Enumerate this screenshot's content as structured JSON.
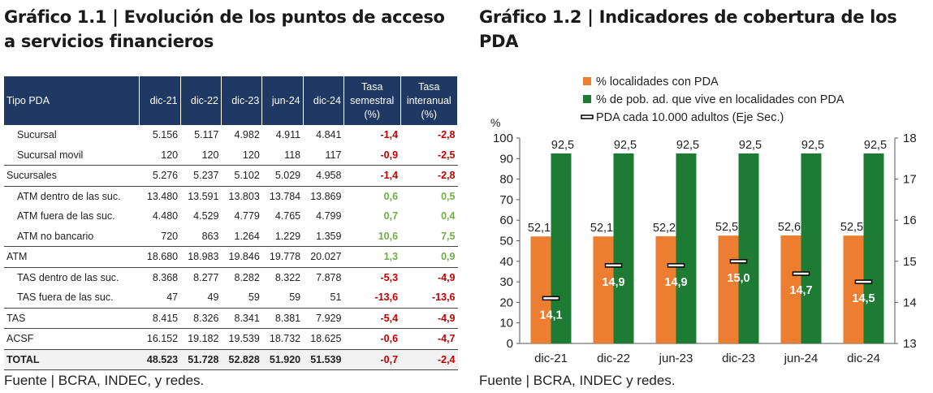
{
  "left": {
    "title": "Gráfico 1.1 | Evolución de los puntos de acceso a servicios financieros",
    "source": "Fuente | BCRA, INDEC, y redes.",
    "table": {
      "headers": [
        "Tipo PDA",
        "dic-21",
        "dic-22",
        "dic-23",
        "jun-24",
        "dic-24"
      ],
      "tasa_semestral": [
        "Tasa",
        "semestral",
        "(%)"
      ],
      "tasa_interanual": [
        "Tasa",
        "interanual",
        "(%)"
      ],
      "rows": [
        {
          "label": "Sucursal",
          "indent": true,
          "values": [
            "5.156",
            "5.117",
            "4.982",
            "4.911",
            "4.841"
          ],
          "semestral": "-1,4",
          "interanual": "-2,8"
        },
        {
          "label": "Sucursal movil",
          "indent": true,
          "values": [
            "120",
            "120",
            "120",
            "118",
            "117"
          ],
          "semestral": "-0,9",
          "interanual": "-2,5"
        },
        {
          "label": "Sucursales",
          "indent": false,
          "values": [
            "5.276",
            "5.237",
            "5.102",
            "5.029",
            "4.958"
          ],
          "semestral": "-1,4",
          "interanual": "-2,8"
        },
        {
          "label": "ATM dentro de las suc.",
          "indent": true,
          "values": [
            "13.480",
            "13.591",
            "13.803",
            "13.784",
            "13.869"
          ],
          "semestral": "0,6",
          "interanual": "0,5"
        },
        {
          "label": "ATM fuera de las suc.",
          "indent": true,
          "values": [
            "4.480",
            "4.529",
            "4.779",
            "4.765",
            "4.799"
          ],
          "semestral": "0,7",
          "interanual": "0,4"
        },
        {
          "label": "ATM no bancario",
          "indent": true,
          "values": [
            "720",
            "863",
            "1.264",
            "1.229",
            "1.359"
          ],
          "semestral": "10,6",
          "interanual": "7,5"
        },
        {
          "label": "ATM",
          "indent": false,
          "values": [
            "18.680",
            "18.983",
            "19.846",
            "19.778",
            "20.027"
          ],
          "semestral": "1,3",
          "interanual": "0,9"
        },
        {
          "label": "TAS dentro de las suc.",
          "indent": true,
          "values": [
            "8.368",
            "8.277",
            "8.282",
            "8.322",
            "7.878"
          ],
          "semestral": "-5,3",
          "interanual": "-4,9"
        },
        {
          "label": "TAS fuera de las suc.",
          "indent": true,
          "values": [
            "47",
            "49",
            "59",
            "59",
            "51"
          ],
          "semestral": "-13,6",
          "interanual": "-13,6"
        },
        {
          "label": "TAS",
          "indent": false,
          "values": [
            "8.415",
            "8.326",
            "8.341",
            "8.381",
            "7.929"
          ],
          "semestral": "-5,4",
          "interanual": "-4,9"
        },
        {
          "label": "ACSF",
          "indent": false,
          "values": [
            "16.152",
            "19.182",
            "19.539",
            "18.732",
            "18.625"
          ],
          "semestral": "-0,6",
          "interanual": "-4,7"
        },
        {
          "label": "TOTAL",
          "indent": false,
          "total": true,
          "values": [
            "48.523",
            "51.728",
            "52.828",
            "51.920",
            "51.539"
          ],
          "semestral": "-0,7",
          "interanual": "-2,4"
        }
      ]
    }
  },
  "right": {
    "title": "Gráfico 1.2 | Indicadores de cobertura de los PDA",
    "source": "Fuente | BCRA, INDEC y redes."
  },
  "colors": {
    "header_bg": "#1f3864",
    "orange": "#ed7d31",
    "green": "#1e7b34",
    "neg": "#c00000",
    "pos": "#70ad47"
  },
  "chart_data": {
    "type": "bar",
    "categories": [
      "dic-21",
      "dic-22",
      "jun-23",
      "dic-23",
      "jun-24",
      "dic-24"
    ],
    "ylabel": "%",
    "ylim": [
      0,
      100
    ],
    "y2lim": [
      13,
      18
    ],
    "yticks": [
      0,
      10,
      20,
      30,
      40,
      50,
      60,
      70,
      80,
      90,
      100
    ],
    "y2ticks": [
      13,
      14,
      15,
      16,
      17,
      18
    ],
    "series": [
      {
        "name": "% localidades con PDA",
        "type": "bar",
        "axis": "primary",
        "values": [
          52.1,
          52.1,
          52.2,
          52.5,
          52.6,
          52.5
        ],
        "labels": [
          "52,1",
          "52,1",
          "52,2",
          "52,5",
          "52,6",
          "52,5"
        ]
      },
      {
        "name": "% de pob. ad. que vive en localidades con PDA",
        "type": "bar",
        "axis": "primary",
        "values": [
          92.5,
          92.5,
          92.5,
          92.5,
          92.5,
          92.5
        ],
        "labels": [
          "92,5",
          "92,5",
          "92,5",
          "92,5",
          "92,5",
          "92,5"
        ]
      },
      {
        "name": "PDA cada 10.000 adultos (Eje Sec.)",
        "type": "marker",
        "axis": "secondary",
        "values": [
          14.1,
          14.9,
          14.9,
          15.0,
          14.7,
          14.5
        ],
        "labels": [
          "14,1",
          "14,9",
          "14,9",
          "15,0",
          "14,7",
          "14,5"
        ]
      }
    ],
    "legend_position": "top"
  }
}
